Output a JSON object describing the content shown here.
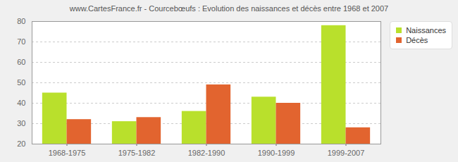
{
  "chart_data": {
    "type": "bar",
    "title": "www.CartesFrance.fr - Courcebœufs : Evolution des naissances et décès entre 1968 et 2007",
    "categories": [
      "1968-1975",
      "1975-1982",
      "1982-1990",
      "1990-1999",
      "1999-2007"
    ],
    "series": [
      {
        "name": "Naissances",
        "color": "#b9e02c",
        "values": [
          45,
          31,
          36,
          43,
          78
        ]
      },
      {
        "name": "Décès",
        "color": "#e2642f",
        "values": [
          32,
          33,
          49,
          40,
          28
        ]
      }
    ],
    "ylim": [
      20,
      80
    ],
    "yticks": [
      20,
      30,
      40,
      50,
      60,
      70,
      80
    ],
    "grid": true,
    "legend": "right"
  }
}
